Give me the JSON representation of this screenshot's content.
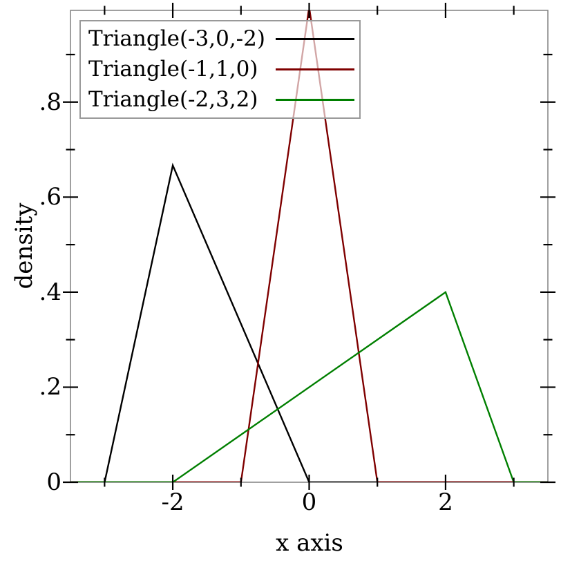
{
  "chart_data": {
    "type": "line",
    "title": "",
    "xlabel": "x axis",
    "ylabel": "density",
    "xlim": [
      -3.5,
      3.5
    ],
    "ylim": [
      0,
      0.993
    ],
    "grid": false,
    "background": "#ffffff",
    "frame_color": "#808080",
    "tick_color": "#000000",
    "text_color": "#000000",
    "x_ticks": {
      "major": [
        {
          "value": -2,
          "label": "-2"
        },
        {
          "value": 0,
          "label": "0"
        },
        {
          "value": 2,
          "label": "2"
        }
      ],
      "minor": [
        -3,
        -1,
        1,
        3
      ]
    },
    "y_ticks": {
      "major": [
        {
          "value": 0,
          "label": "0"
        },
        {
          "value": 0.2,
          "label": ".2"
        },
        {
          "value": 0.4,
          "label": ".4"
        },
        {
          "value": 0.6,
          "label": ".6"
        },
        {
          "value": 0.8,
          "label": ".8"
        }
      ],
      "minor": [
        0.1,
        0.3,
        0.5,
        0.7,
        0.9
      ]
    },
    "series": [
      {
        "name": "Triangle(-3,0,-2)",
        "color": "#000000",
        "points": [
          [
            -3.5,
            0
          ],
          [
            -3,
            0
          ],
          [
            -2,
            0.6667
          ],
          [
            0,
            0
          ],
          [
            3.5,
            0
          ]
        ]
      },
      {
        "name": "Triangle(-1,1,0)",
        "color": "#7f0000",
        "points": [
          [
            -3.5,
            0
          ],
          [
            -1,
            0
          ],
          [
            0,
            1
          ],
          [
            1,
            0
          ],
          [
            3.5,
            0
          ]
        ]
      },
      {
        "name": "Triangle(-2,3,2)",
        "color": "#007f00",
        "points": [
          [
            -3.5,
            0
          ],
          [
            -2,
            0
          ],
          [
            2,
            0.4
          ],
          [
            3,
            0
          ],
          [
            3.5,
            0
          ]
        ]
      }
    ],
    "legend": {
      "position": "top-left",
      "background": "rgba(255,255,255,0.65)",
      "border_color": "#999999"
    }
  }
}
